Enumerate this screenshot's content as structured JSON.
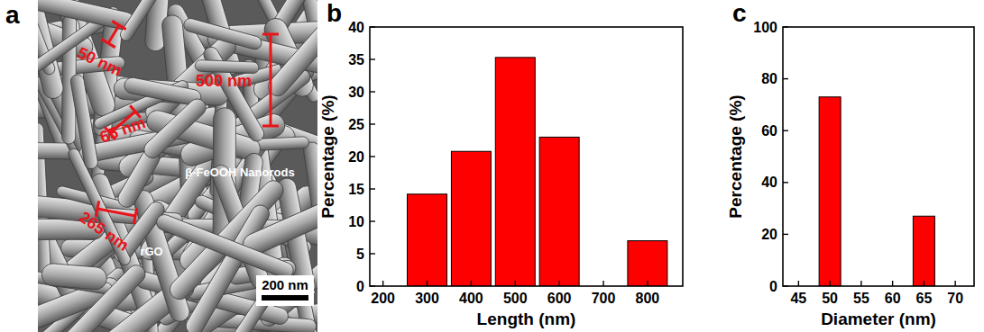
{
  "image_panel": {
    "label": "a",
    "annotations": [
      "50 nm",
      "65 nm",
      "500 nm",
      "265 nm",
      "β-FeOOH Nanorods",
      "rGO"
    ],
    "scale_bar": "200 nm"
  },
  "chart_data": [
    {
      "type": "bar",
      "title": "b",
      "x": [
        300,
        400,
        500,
        600,
        800
      ],
      "values": [
        14.2,
        20.8,
        35.3,
        23,
        7
      ],
      "color": "#ff0000",
      "x_label": "Length (nm)",
      "y_label": "Percentage (%)",
      "xlim": [
        170,
        880
      ],
      "xticks": [
        200,
        300,
        400,
        500,
        600,
        700,
        800
      ],
      "ylim": [
        0,
        40
      ],
      "yticks": [
        0,
        5,
        10,
        15,
        20,
        25,
        30,
        35,
        40
      ]
    },
    {
      "type": "bar",
      "title": "c",
      "x": [
        50,
        65
      ],
      "values": [
        73,
        27
      ],
      "color": "#ff0000",
      "x_label": "Diameter (nm)",
      "y_label": "Percentage (%)",
      "xlim": [
        42.5,
        73
      ],
      "xticks": [
        45,
        50,
        55,
        60,
        65,
        70
      ],
      "ylim": [
        0,
        100
      ],
      "yticks": [
        0,
        20,
        40,
        60,
        80,
        100
      ]
    }
  ]
}
